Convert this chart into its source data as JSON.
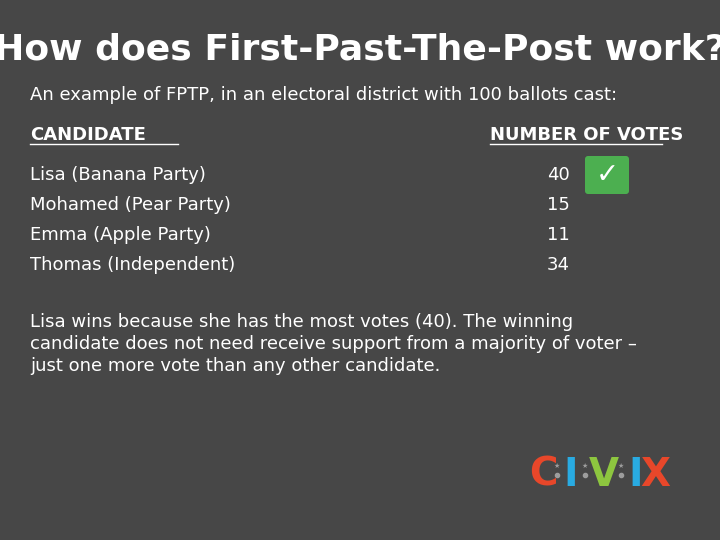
{
  "title": "How does First-Past-The-Post work?",
  "subtitle": "An example of FPTP, in an electoral district with 100 ballots cast:",
  "col_header_left": "CANDIDATE",
  "col_header_right": "NUMBER OF VOTES",
  "candidates": [
    "Lisa (Banana Party)",
    "Mohamed (Pear Party)",
    "Emma (Apple Party)",
    "Thomas (Independent)"
  ],
  "votes": [
    "40",
    "15",
    "11",
    "34"
  ],
  "winner_index": 0,
  "body_line1": "Lisa wins because she has the most votes (40). The winning",
  "body_line2": "candidate does not need receive support from a majority of voter –",
  "body_line3": "just one more vote than any other candidate.",
  "bg_color": "#474747",
  "title_color": "#ffffff",
  "text_color": "#ffffff",
  "civix_C_color": "#e8472a",
  "civix_I_color": "#29abe2",
  "civix_V_color": "#8dc63f",
  "civix_X_color": "#e8472a",
  "civix_dot_color": "#9d9d9d",
  "checkmark_bg": "#4caf50",
  "checkmark_color": "#ffffff",
  "title_fontsize": 26,
  "subtitle_fontsize": 13,
  "header_fontsize": 13,
  "candidate_fontsize": 13,
  "body_fontsize": 13,
  "civix_fontsize": 28
}
